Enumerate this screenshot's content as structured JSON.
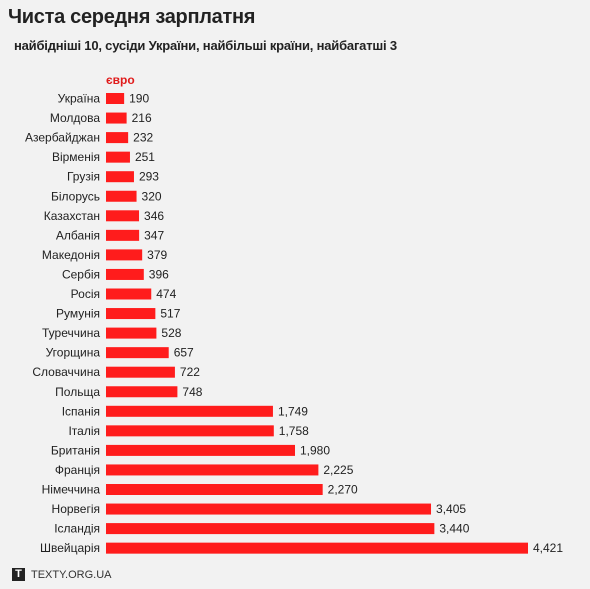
{
  "header": {
    "title": "Чиста середня зарплатня",
    "subtitle": "найбідніші 10, сусіди України, найбільші країни, найбагатші 3"
  },
  "footer": {
    "logo_letter": "T",
    "site": "TEXTY.ORG.UA"
  },
  "colors": {
    "bar": "#ff1c1c",
    "unit_label": "#e01b1b",
    "background": "#f2f2f2"
  },
  "chart_data": {
    "type": "bar",
    "orientation": "horizontal",
    "title": "Чиста середня зарплатня",
    "subtitle": "найбідніші 10, сусіди України, найбільші країни, найбагатші 3",
    "unit": "євро",
    "categories": [
      "Україна",
      "Молдова",
      "Азербайджан",
      "Вірменія",
      "Грузія",
      "Білорусь",
      "Казахстан",
      "Албанія",
      "Македонія",
      "Сербія",
      "Росія",
      "Румунія",
      "Туреччина",
      "Угорщина",
      "Словаччина",
      "Польща",
      "Іспанія",
      "Італія",
      "Британія",
      "Франція",
      "Німеччина",
      "Норвегія",
      "Ісландія",
      "Швейцарія"
    ],
    "values": [
      190,
      216,
      232,
      251,
      293,
      320,
      346,
      347,
      379,
      396,
      474,
      517,
      528,
      657,
      722,
      748,
      1749,
      1758,
      1980,
      2225,
      2270,
      3405,
      3440,
      4421
    ],
    "value_labels": [
      "190",
      "216",
      "232",
      "251",
      "293",
      "320",
      "346",
      "347",
      "379",
      "396",
      "474",
      "517",
      "528",
      "657",
      "722",
      "748",
      "1,749",
      "1,758",
      "1,980",
      "2,225",
      "2,270",
      "3,405",
      "3,440",
      "4,421"
    ],
    "xlim": [
      0,
      4421
    ],
    "grid": false,
    "legend": "none"
  }
}
